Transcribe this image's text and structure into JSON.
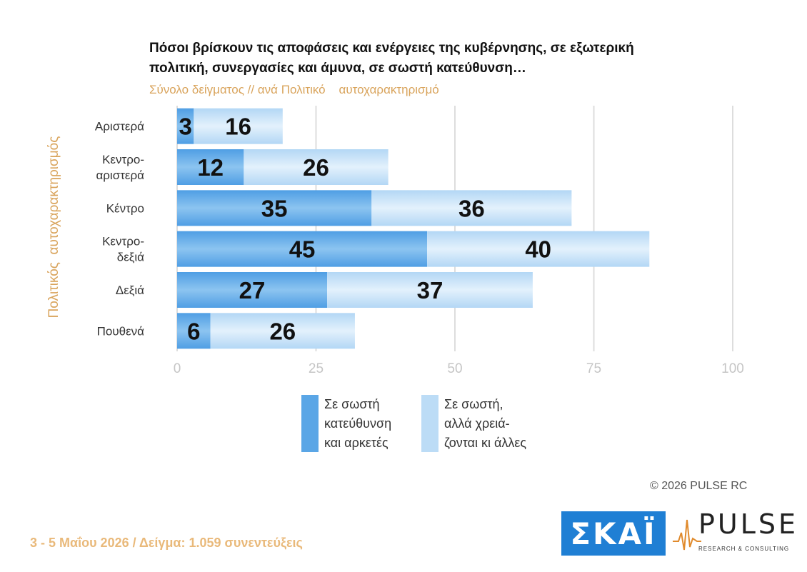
{
  "title": "Πόσοι βρίσκουν τις αποφάσεις και ενέργειες της κυβέρνησης, σε εξωτερική πολιτική, συνεργασίες και άμυνα, σε σωστή κατεύθυνση…",
  "subtitle": "Σύνολο δείγματος // ανά Πολιτικό    αυτοχαρακτηρισμό",
  "copyright": "© 2026  PULSE RC",
  "footer": "3 - 5  Μαΐου 2026  /  Δείγμα:  1.059 συνεντεύξεις",
  "logos": {
    "skai": "ΣΚΑΪ",
    "pulse": "PULSE",
    "pulse_tagline": "RESEARCH & CONSULTING"
  },
  "colors": {
    "series1": "#5aa6e6",
    "series2": "#bcdcf6",
    "accent": "#d9a45c",
    "grid": "#dddddd",
    "tick": "#c5c5c5"
  },
  "chart_data": {
    "type": "bar",
    "orientation": "horizontal",
    "stacked": true,
    "categories": [
      "Αριστερά",
      "Κεντρο-\nαριστερά",
      "Κέντρο",
      "Κεντρο-\nδεξιά",
      "Δεξιά",
      "Πουθενά"
    ],
    "series": [
      {
        "name": "Σε σωστή\nκατεύθυνση\nκαι αρκετές",
        "values": [
          3,
          12,
          35,
          45,
          27,
          6
        ]
      },
      {
        "name": "Σε σωστή,\nαλλά χρειά-\nζονται κι άλλες",
        "values": [
          16,
          26,
          36,
          40,
          37,
          26
        ]
      }
    ],
    "title": "Πόσοι βρίσκουν τις αποφάσεις και ενέργειες της κυβέρνησης, σε εξωτερική πολιτική, συνεργασίες και άμυνα, σε σωστή κατεύθυνση…",
    "xlabel": "",
    "ylabel": "Πολιτικός  αυτοχαρακτηρισμός",
    "xlim": [
      0,
      100
    ],
    "xticks": [
      0,
      25,
      50,
      75,
      100
    ],
    "grid": true,
    "legend_position": "bottom"
  }
}
